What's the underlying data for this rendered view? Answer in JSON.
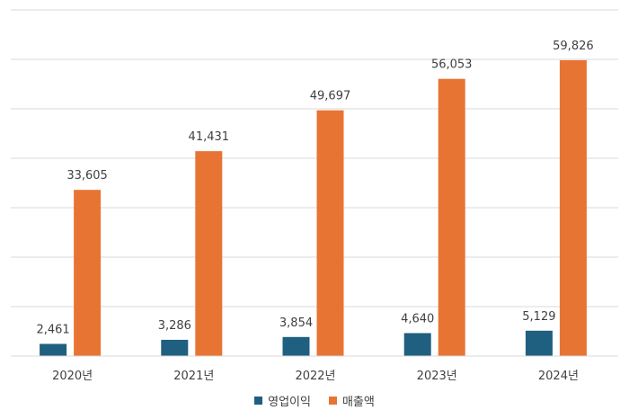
{
  "chart_data": {
    "type": "bar",
    "title": "",
    "xlabel": "",
    "ylabel": "",
    "categories": [
      "2020년",
      "2021년",
      "2022년",
      "2023년",
      "2024년"
    ],
    "series": [
      {
        "name": "영업이익",
        "values": [
          2461,
          3286,
          3854,
          4640,
          5129
        ],
        "labels": [
          "2,461",
          "3,286",
          "3,854",
          "4,640",
          "5,129"
        ],
        "color": "#1f5f80"
      },
      {
        "name": "매출액",
        "values": [
          33605,
          41431,
          49697,
          56053,
          59826
        ],
        "labels": [
          "33,605",
          "41,431",
          "49,697",
          "56,053",
          "59,826"
        ],
        "color": "#e87434"
      }
    ],
    "ylim": [
      0,
      70000
    ],
    "grid": true,
    "legend_position": "bottom"
  }
}
